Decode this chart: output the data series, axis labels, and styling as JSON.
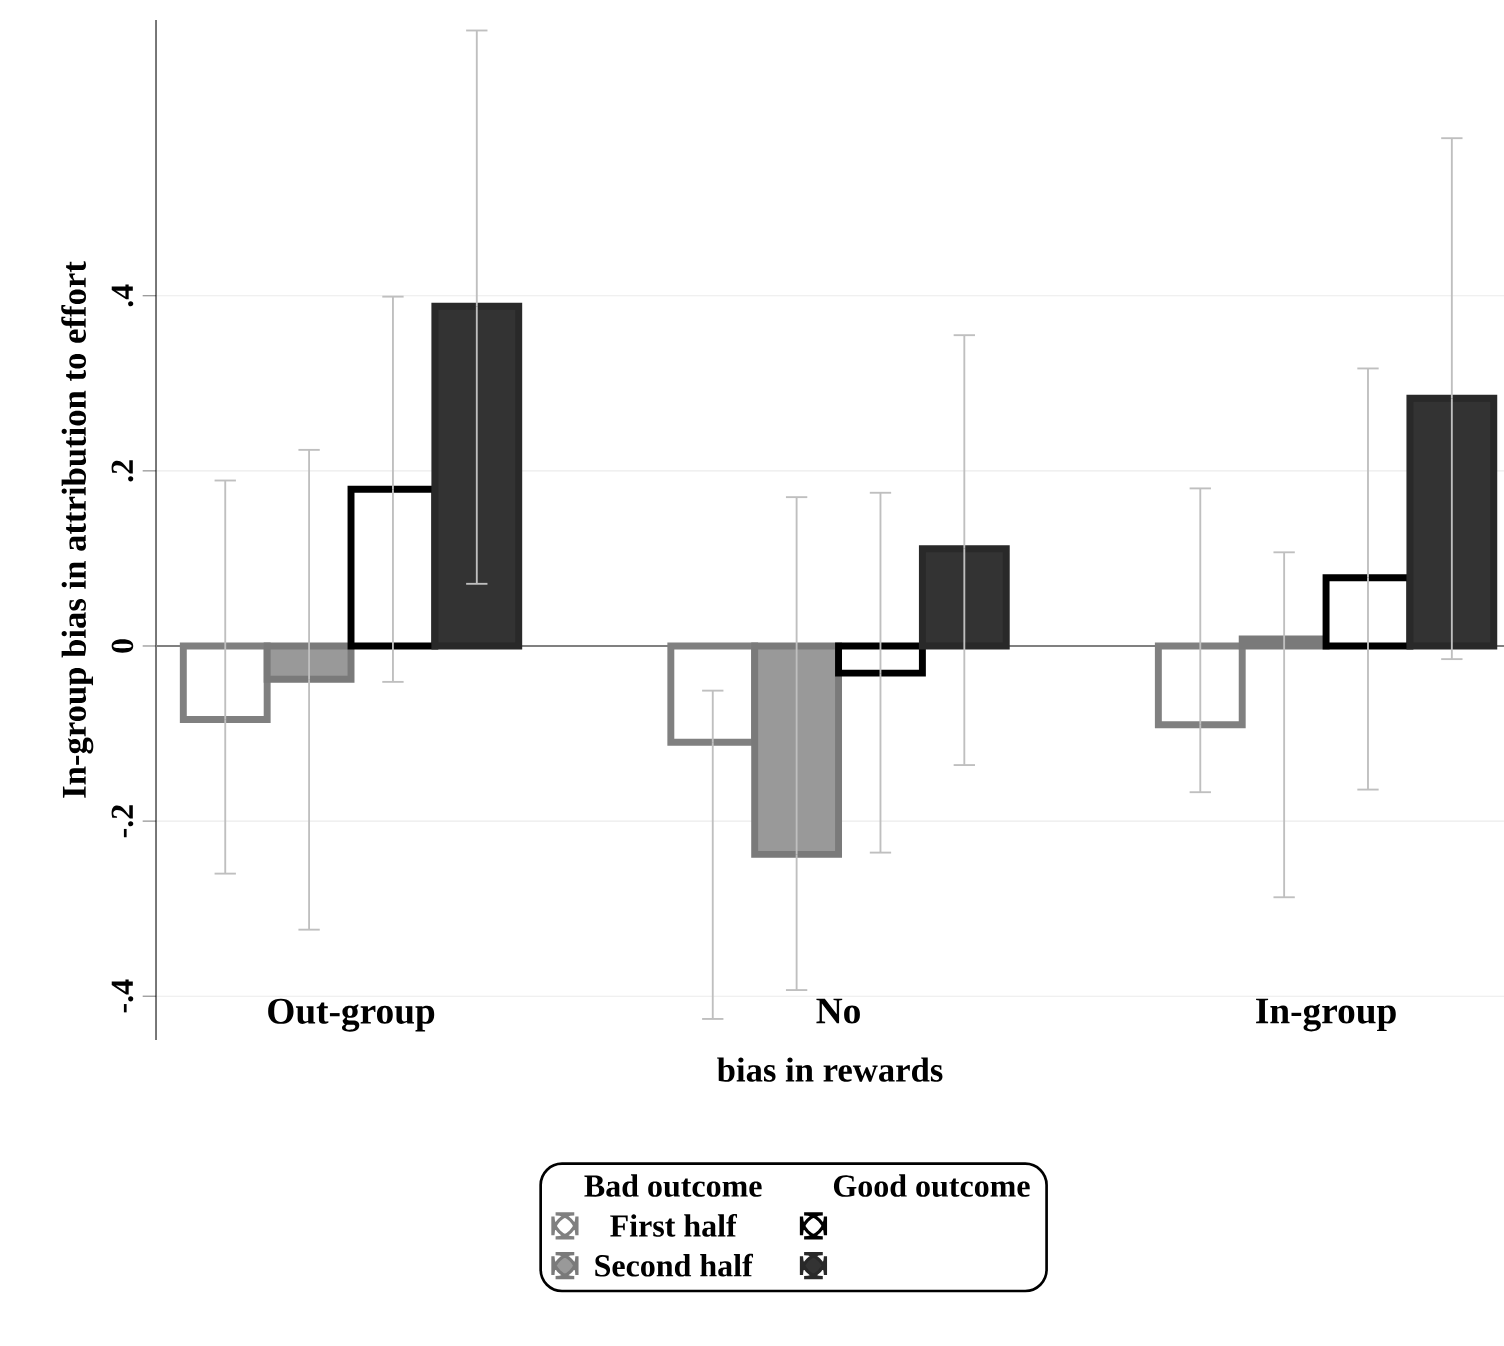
{
  "chart_data": {
    "type": "bar",
    "ylabel": "In-group bias in attribution to effort",
    "xlabel": "bias in rewards",
    "categories": [
      "Out-group",
      "No",
      "In-group"
    ],
    "series": [
      {
        "name": "First half",
        "color": "#808080",
        "values": [
          -0.084,
          -0.11,
          -0.09
        ],
        "errors": [
          [
            -0.26,
            0.189
          ],
          [
            -0.426,
            -0.051
          ],
          [
            -0.167,
            0.18
          ]
        ]
      },
      {
        "name": "Second half",
        "color": "#999999",
        "values": [
          -0.038,
          -0.238,
          0.008
        ],
        "errors": [
          [
            -0.324,
            0.224
          ],
          [
            -0.393,
            0.17
          ],
          [
            -0.287,
            0.107
          ]
        ]
      },
      {
        "color": "#000000",
        "values": [
          0.179,
          -0.031,
          0.078
        ],
        "errors": [
          [
            -0.041,
            0.399
          ],
          [
            -0.236,
            0.175
          ],
          [
            -0.164,
            0.317
          ]
        ]
      },
      {
        "color": "#333333",
        "values": [
          0.388,
          0.111,
          0.283
        ],
        "errors": [
          [
            0.071,
            0.703
          ],
          [
            -0.136,
            0.355
          ],
          [
            -0.015,
            0.58
          ]
        ]
      }
    ],
    "annotations": [
      "Bad outcome",
      "Good outcome"
    ],
    "ylim": [
      -0.45,
      0.715
    ],
    "yticks": [
      {
        "value": -0.4,
        "label": "-.4"
      },
      {
        "value": -0.2,
        "label": "-.2"
      },
      0,
      {
        "value": 0.2,
        "label": ".2"
      },
      {
        "value": 0.4,
        "label": ".4"
      }
    ],
    "ref_lines": [
      {
        "axis": "y",
        "value": 0,
        "color": "#808080"
      }
    ],
    "grid": "y",
    "legend": "bottom"
  }
}
